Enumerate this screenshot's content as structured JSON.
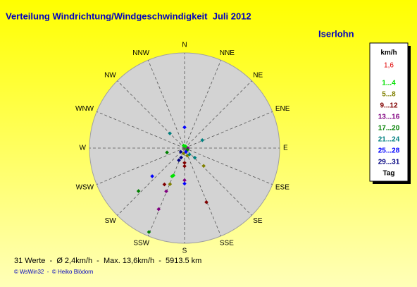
{
  "chart_data": {
    "type": "polar_scatter",
    "title": "Verteilung Windrichtung/Windgeschwindigkeit  Juli 2012",
    "subtitle": "Iserlohn",
    "directions": [
      "N",
      "NNE",
      "NE",
      "ENE",
      "E",
      "ESE",
      "SE",
      "SSE",
      "S",
      "SSW",
      "SW",
      "WSW",
      "W",
      "WNW",
      "NW",
      "NNW"
    ],
    "rlim": [
      0,
      14.2
    ],
    "legend_title": "km/h",
    "legend_scale": "1,6",
    "legend_footer": "Tag",
    "series": [
      {
        "name": "1...4",
        "color": "#00e000",
        "directions": [
          202,
          204,
          30,
          340
        ],
        "values": [
          4.4,
          4.6,
          0.3,
          0.4
        ]
      },
      {
        "name": "5...8",
        "color": "#808000",
        "directions": [
          133,
          202,
          190,
          160
        ],
        "values": [
          3.9,
          5.8,
          0.8,
          1.2
        ]
      },
      {
        "name": "9...12",
        "color": "#800000",
        "directions": [
          180,
          180,
          209,
          158
        ],
        "values": [
          2.2,
          2.7,
          6.2,
          8.7
        ]
      },
      {
        "name": "13...16",
        "color": "#800080",
        "directions": [
          180,
          203,
          203,
          90
        ],
        "values": [
          4.8,
          7.0,
          9.9,
          0.5
        ]
      },
      {
        "name": "17...20",
        "color": "#008000",
        "directions": [
          256,
          227,
          203,
          120
        ],
        "values": [
          2.7,
          9.4,
          13.6,
          0.5
        ]
      },
      {
        "name": "21...24",
        "color": "#008080",
        "directions": [
          315,
          66,
          142,
          133
        ],
        "values": [
          3.1,
          2.9,
          1.2,
          2.1
        ]
      },
      {
        "name": "25...28",
        "color": "#0000ff",
        "directions": [
          0,
          229,
          180,
          160
        ],
        "values": [
          3.1,
          6.4,
          5.3,
          0.6
        ]
      },
      {
        "name": "29...31",
        "color": "#000080",
        "directions": [
          205,
          225,
          200
        ],
        "values": [
          2.0,
          0.8,
          1.5
        ]
      }
    ],
    "footer": "31 Werte  -  Ø 2,4km/h  -  Max. 13,6km/h  -  5913.5 km",
    "credits": "© WsWin32  -  © Heiko Blödorn"
  }
}
